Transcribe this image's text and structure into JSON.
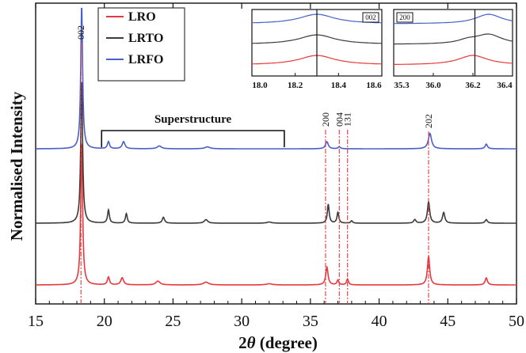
{
  "chart_data": {
    "type": "line",
    "xlabel_prefix": "2",
    "xlabel_theta": "θ",
    "xlabel_suffix": " (degree)",
    "ylabel": "Normalised Intensity",
    "xlim": [
      15,
      50
    ],
    "xticks": [
      15,
      20,
      25,
      30,
      35,
      40,
      45,
      50
    ],
    "grid": false,
    "legend_position": "top-left",
    "series": [
      {
        "name": "LRO",
        "color": "#e8383c",
        "peaks": [
          [
            18.35,
            6.0,
            0.08
          ],
          [
            20.3,
            0.33,
            0.09
          ],
          [
            21.3,
            0.3,
            0.12
          ],
          [
            23.9,
            0.16,
            0.18
          ],
          [
            27.4,
            0.12,
            0.22
          ],
          [
            32.0,
            0.05,
            0.25
          ],
          [
            36.2,
            0.75,
            0.1
          ],
          [
            37.0,
            0.2,
            0.08
          ],
          [
            37.7,
            0.25,
            0.08
          ],
          [
            43.6,
            1.2,
            0.1
          ],
          [
            47.8,
            0.3,
            0.1
          ]
        ]
      },
      {
        "name": "LRTO",
        "color": "#3b3b3b",
        "peaks": [
          [
            18.35,
            6.0,
            0.08
          ],
          [
            20.3,
            0.55,
            0.08
          ],
          [
            21.6,
            0.4,
            0.08
          ],
          [
            24.3,
            0.25,
            0.1
          ],
          [
            27.4,
            0.15,
            0.15
          ],
          [
            32.0,
            0.05,
            0.2
          ],
          [
            36.3,
            0.8,
            0.08
          ],
          [
            37.0,
            0.45,
            0.08
          ],
          [
            38.0,
            0.1,
            0.08
          ],
          [
            42.6,
            0.15,
            0.1
          ],
          [
            43.6,
            0.9,
            0.1
          ],
          [
            44.7,
            0.45,
            0.1
          ],
          [
            47.8,
            0.15,
            0.1
          ]
        ]
      },
      {
        "name": "LRFO",
        "color": "#4a5fc8",
        "peaks": [
          [
            18.35,
            6.0,
            0.08
          ],
          [
            20.3,
            0.3,
            0.09
          ],
          [
            21.4,
            0.3,
            0.12
          ],
          [
            24.0,
            0.12,
            0.18
          ],
          [
            27.5,
            0.08,
            0.22
          ],
          [
            36.2,
            0.3,
            0.12
          ],
          [
            37.1,
            0.08,
            0.1
          ],
          [
            43.7,
            0.65,
            0.14
          ],
          [
            47.8,
            0.2,
            0.1
          ]
        ]
      }
    ],
    "peak_labels": [
      {
        "text": "002",
        "x": 18.3
      },
      {
        "text": "200",
        "x": 36.1
      },
      {
        "text": "004",
        "x": 37.1
      },
      {
        "text": "131",
        "x": 37.7
      },
      {
        "text": "202",
        "x": 43.6
      }
    ],
    "annotations": {
      "superstructure": {
        "text": "Superstructure",
        "x_start": 19.8,
        "x_end": 33.1
      }
    },
    "insets": [
      {
        "badge": "002",
        "xlim": [
          18.0,
          18.6
        ],
        "xticks": [
          "18.0",
          "18.2",
          "18.4",
          "18.6"
        ],
        "marker_x": 18.3
      },
      {
        "badge": "200",
        "xlim": [
          35.3,
          36.5
        ],
        "xticks": [
          "35.3",
          "36.0",
          "36.2",
          "36.4"
        ],
        "marker_x": 36.12
      }
    ]
  }
}
